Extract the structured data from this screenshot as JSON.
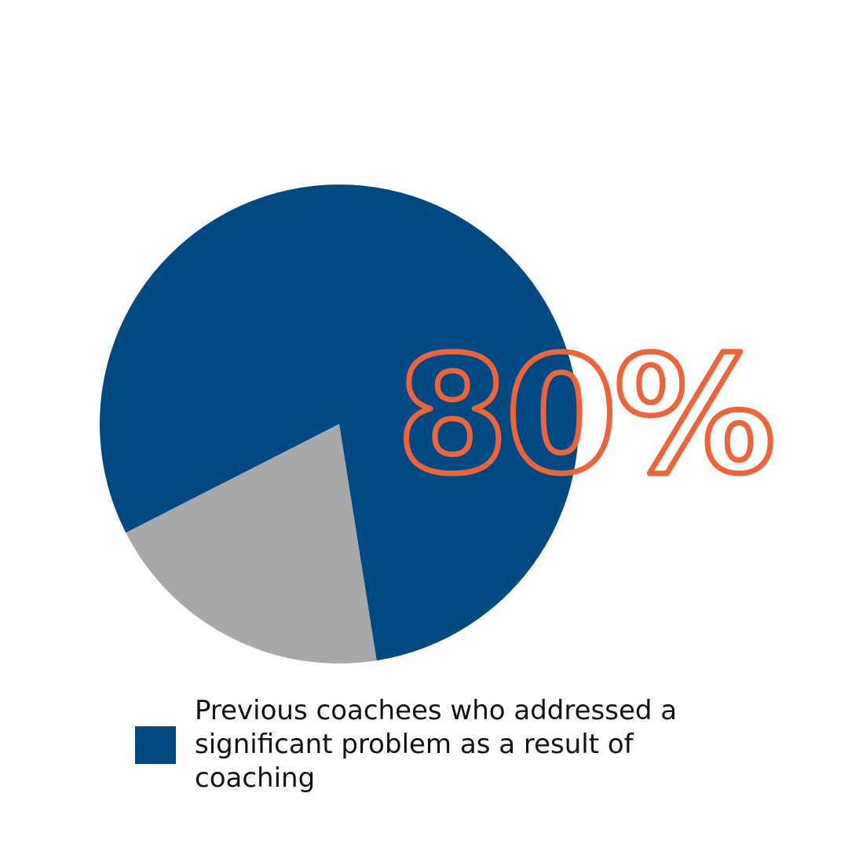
{
  "chart_data": {
    "type": "pie",
    "slices": [
      {
        "name": "Previous coachees who addressed a significant problem as a result of coaching",
        "value": 80,
        "color": "#004A84"
      },
      {
        "name": "",
        "value": 20,
        "color": "#A7A8AA"
      }
    ],
    "highlight_label": "80%",
    "highlight_color": "#EE6338",
    "legend": [
      {
        "label": "Previous coachees who addressed a significant problem as a result of coaching",
        "color": "#004A84"
      }
    ],
    "legend_placement": "bottom"
  }
}
